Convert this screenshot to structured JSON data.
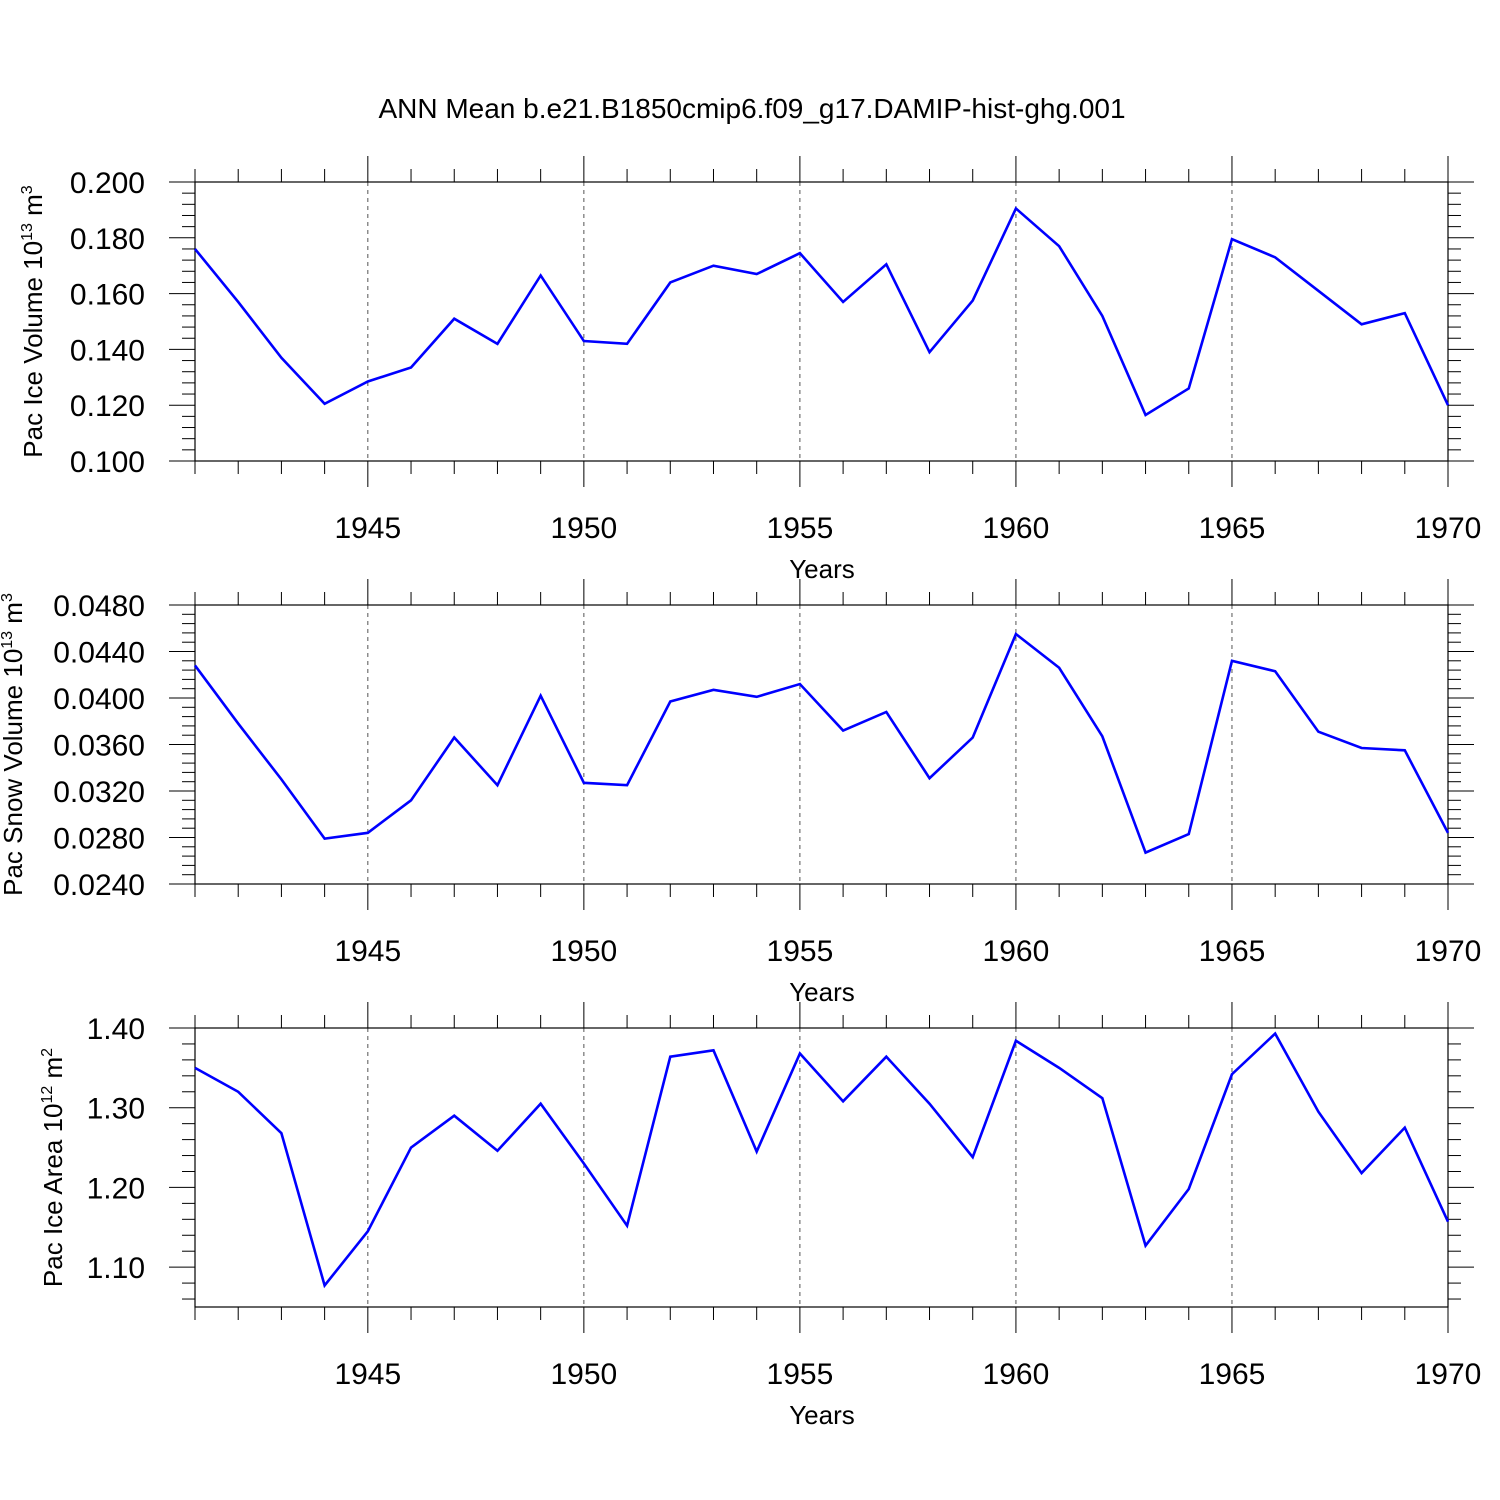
{
  "title": "ANN Mean b.e21.B1850cmip6.f09_g17.DAMIP-hist-ghg.001",
  "colors": {
    "series": "#0000ff",
    "axes": "#000000",
    "grid": "#555555"
  },
  "chart_data": [
    {
      "type": "line",
      "ylabel": {
        "main": "Pac Ice Volume 10",
        "sup1": "13",
        "mid": " m",
        "sup2": "3"
      },
      "xlabel": "Years",
      "xlim": [
        1941,
        1970
      ],
      "ylim": [
        0.1,
        0.2
      ],
      "xticks": [
        1945,
        1950,
        1955,
        1960,
        1965,
        1970
      ],
      "xtick_labels": [
        "1945",
        "1950",
        "1955",
        "1960",
        "1965",
        "1970"
      ],
      "yticks": [
        0.1,
        0.12,
        0.14,
        0.16,
        0.18,
        0.2
      ],
      "ytick_labels": [
        "0.100",
        "0.120",
        "0.140",
        "0.160",
        "0.180",
        "0.200"
      ],
      "grid": "vertical dashed at major x ticks",
      "x": [
        1941,
        1942,
        1943,
        1944,
        1945,
        1946,
        1947,
        1948,
        1949,
        1950,
        1951,
        1952,
        1953,
        1954,
        1955,
        1956,
        1957,
        1958,
        1959,
        1960,
        1961,
        1962,
        1963,
        1964,
        1965,
        1966,
        1967,
        1968,
        1969,
        1970
      ],
      "series": [
        {
          "values": [
            0.176,
            0.157,
            0.137,
            0.1205,
            0.1285,
            0.1335,
            0.151,
            0.142,
            0.1665,
            0.143,
            0.142,
            0.164,
            0.17,
            0.167,
            0.1745,
            0.157,
            0.1705,
            0.139,
            0.1575,
            0.1905,
            0.177,
            0.152,
            0.1165,
            0.126,
            0.1795,
            0.173,
            0.161,
            0.149,
            0.153,
            0.12
          ]
        }
      ]
    },
    {
      "type": "line",
      "ylabel": {
        "main": "Pac Snow Volume 10",
        "sup1": "13",
        "mid": " m",
        "sup2": "3"
      },
      "xlabel": "Years",
      "xlim": [
        1941,
        1970
      ],
      "ylim": [
        0.024,
        0.048
      ],
      "xticks": [
        1945,
        1950,
        1955,
        1960,
        1965,
        1970
      ],
      "xtick_labels": [
        "1945",
        "1950",
        "1955",
        "1960",
        "1965",
        "1970"
      ],
      "yticks": [
        0.024,
        0.028,
        0.032,
        0.036,
        0.04,
        0.044,
        0.048
      ],
      "ytick_labels": [
        "0.0240",
        "0.0280",
        "0.0320",
        "0.0360",
        "0.0400",
        "0.0440",
        "0.0480"
      ],
      "grid": "vertical dashed at major x ticks",
      "x": [
        1941,
        1942,
        1943,
        1944,
        1945,
        1946,
        1947,
        1948,
        1949,
        1950,
        1951,
        1952,
        1953,
        1954,
        1955,
        1956,
        1957,
        1958,
        1959,
        1960,
        1961,
        1962,
        1963,
        1964,
        1965,
        1966,
        1967,
        1968,
        1969,
        1970
      ],
      "series": [
        {
          "values": [
            0.0428,
            0.0378,
            0.033,
            0.0279,
            0.0284,
            0.0312,
            0.0366,
            0.0325,
            0.0402,
            0.0327,
            0.0325,
            0.0397,
            0.0407,
            0.0401,
            0.0412,
            0.0372,
            0.0388,
            0.0331,
            0.0366,
            0.0455,
            0.0426,
            0.0367,
            0.0267,
            0.0283,
            0.0432,
            0.0423,
            0.0371,
            0.0357,
            0.0355,
            0.0284
          ]
        }
      ]
    },
    {
      "type": "line",
      "ylabel": {
        "main": "Pac Ice Area 10",
        "sup1": "12",
        "mid": " m",
        "sup2": "2"
      },
      "xlabel": "Years",
      "xlim": [
        1941,
        1970
      ],
      "ylim": [
        1.05,
        1.4
      ],
      "xticks": [
        1945,
        1950,
        1955,
        1960,
        1965,
        1970
      ],
      "xtick_labels": [
        "1945",
        "1950",
        "1955",
        "1960",
        "1965",
        "1970"
      ],
      "yticks": [
        1.1,
        1.2,
        1.3,
        1.4
      ],
      "ytick_labels": [
        "1.10",
        "1.20",
        "1.30",
        "1.40"
      ],
      "grid": "vertical dashed at major x ticks",
      "x": [
        1941,
        1942,
        1943,
        1944,
        1945,
        1946,
        1947,
        1948,
        1949,
        1950,
        1951,
        1952,
        1953,
        1954,
        1955,
        1956,
        1957,
        1958,
        1959,
        1960,
        1961,
        1962,
        1963,
        1964,
        1965,
        1966,
        1967,
        1968,
        1969,
        1970
      ],
      "series": [
        {
          "values": [
            1.35,
            1.32,
            1.268,
            1.077,
            1.145,
            1.25,
            1.29,
            1.246,
            1.305,
            1.23,
            1.152,
            1.364,
            1.372,
            1.245,
            1.368,
            1.308,
            1.364,
            1.305,
            1.238,
            1.384,
            1.35,
            1.312,
            1.127,
            1.198,
            1.342,
            1.393,
            1.295,
            1.218,
            1.275,
            1.157
          ]
        }
      ]
    }
  ]
}
